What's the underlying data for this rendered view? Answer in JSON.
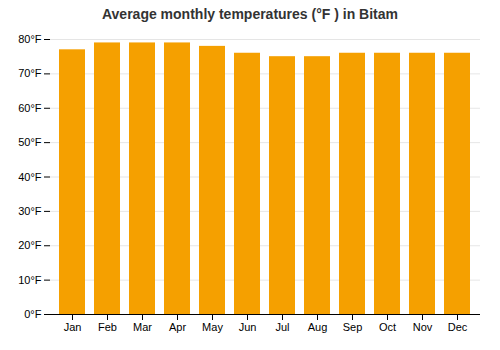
{
  "chart_data": {
    "type": "bar",
    "title": "Average monthly temperatures (°F ) in Bitam",
    "categories": [
      "Jan",
      "Feb",
      "Mar",
      "Apr",
      "May",
      "Jun",
      "Jul",
      "Aug",
      "Sep",
      "Oct",
      "Nov",
      "Dec"
    ],
    "values": [
      77,
      79,
      79,
      79,
      78,
      76,
      75,
      75,
      76,
      76,
      76,
      76
    ],
    "color": "#F5A000",
    "ylim": [
      0,
      80
    ],
    "yticks": [
      {
        "value": 0,
        "label": "0°F"
      },
      {
        "value": 10,
        "label": "10°F"
      },
      {
        "value": 20,
        "label": "20°F"
      },
      {
        "value": 30,
        "label": "30°F"
      },
      {
        "value": 40,
        "label": "40°F"
      },
      {
        "value": 50,
        "label": "50°F"
      },
      {
        "value": 60,
        "label": "60°F"
      },
      {
        "value": 70,
        "label": "70°F"
      },
      {
        "value": 80,
        "label": "80°F"
      }
    ],
    "grid": true
  }
}
